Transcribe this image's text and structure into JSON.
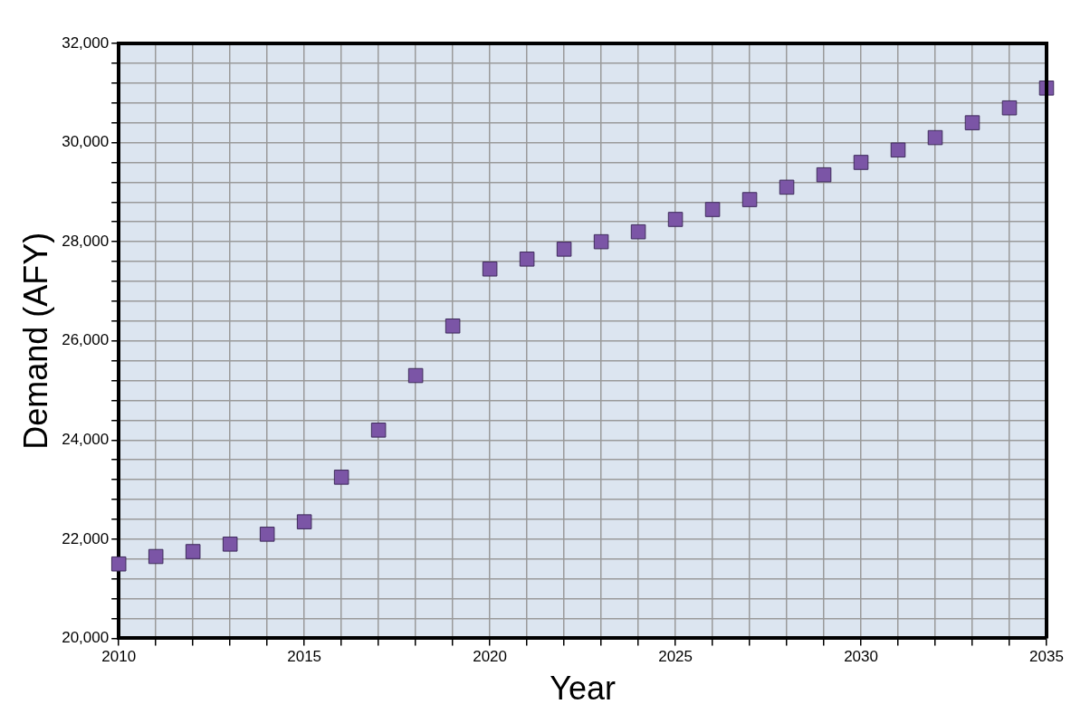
{
  "chart_data": {
    "type": "scatter",
    "xlabel": "Year",
    "ylabel": "Demand (AFY)",
    "x": [
      2010,
      2011,
      2012,
      2013,
      2014,
      2015,
      2016,
      2017,
      2018,
      2019,
      2020,
      2021,
      2022,
      2023,
      2024,
      2025,
      2026,
      2027,
      2028,
      2029,
      2030,
      2031,
      2032,
      2033,
      2034,
      2035
    ],
    "series": [
      {
        "color": "#7b55a6",
        "values": [
          21500,
          21650,
          21750,
          21900,
          22100,
          22350,
          23250,
          24200,
          25300,
          26300,
          27450,
          27650,
          27850,
          28000,
          28200,
          28450,
          28650,
          28850,
          29100,
          29350,
          29600,
          29850,
          30100,
          30400,
          30700,
          31100
        ]
      }
    ],
    "xlim": [
      2010,
      2035
    ],
    "xticks": [
      2010,
      {
        "value": 2011,
        "label": null
      },
      {
        "value": 2012,
        "label": null
      },
      {
        "value": 2013,
        "label": null
      },
      {
        "value": 2014,
        "label": null
      },
      2015,
      {
        "value": 2016,
        "label": null
      },
      {
        "value": 2017,
        "label": null
      },
      {
        "value": 2018,
        "label": null
      },
      {
        "value": 2019,
        "label": null
      },
      2020,
      {
        "value": 2021,
        "label": null
      },
      {
        "value": 2022,
        "label": null
      },
      {
        "value": 2023,
        "label": null
      },
      {
        "value": 2024,
        "label": null
      },
      2025,
      {
        "value": 2026,
        "label": null
      },
      {
        "value": 2027,
        "label": null
      },
      {
        "value": 2028,
        "label": null
      },
      {
        "value": 2029,
        "label": null
      },
      2030,
      {
        "value": 2031,
        "label": null
      },
      {
        "value": 2032,
        "label": null
      },
      {
        "value": 2033,
        "label": null
      },
      {
        "value": 2034,
        "label": null
      },
      2035
    ],
    "ylim": [
      20000,
      32000
    ],
    "yticks": [
      {
        "value": 20000,
        "label": "20,000"
      },
      {
        "value": 20400,
        "label": null
      },
      {
        "value": 20800,
        "label": null
      },
      {
        "value": 21200,
        "label": null
      },
      {
        "value": 21600,
        "label": null
      },
      {
        "value": 22000,
        "label": "22,000"
      },
      {
        "value": 22400,
        "label": null
      },
      {
        "value": 22800,
        "label": null
      },
      {
        "value": 23200,
        "label": null
      },
      {
        "value": 23600,
        "label": null
      },
      {
        "value": 24000,
        "label": "24,000"
      },
      {
        "value": 24400,
        "label": null
      },
      {
        "value": 24800,
        "label": null
      },
      {
        "value": 25200,
        "label": null
      },
      {
        "value": 25600,
        "label": null
      },
      {
        "value": 26000,
        "label": "26,000"
      },
      {
        "value": 26400,
        "label": null
      },
      {
        "value": 26800,
        "label": null
      },
      {
        "value": 27200,
        "label": null
      },
      {
        "value": 27600,
        "label": null
      },
      {
        "value": 28000,
        "label": "28,000"
      },
      {
        "value": 28400,
        "label": null
      },
      {
        "value": 28800,
        "label": null
      },
      {
        "value": 29200,
        "label": null
      },
      {
        "value": 29600,
        "label": null
      },
      {
        "value": 30000,
        "label": "30,000"
      },
      {
        "value": 30400,
        "label": null
      },
      {
        "value": 30800,
        "label": null
      },
      {
        "value": 31200,
        "label": null
      },
      {
        "value": 31600,
        "label": null
      },
      {
        "value": 32000,
        "label": "32,000"
      }
    ],
    "grid": true,
    "marker": "square",
    "legend": false
  }
}
